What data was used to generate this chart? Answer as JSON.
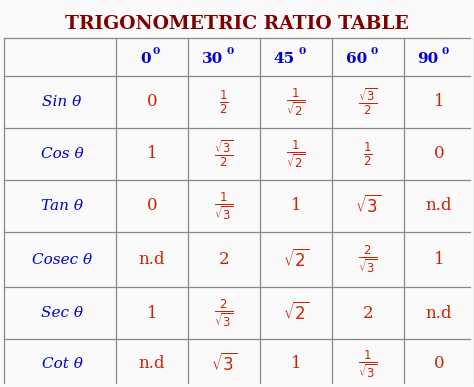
{
  "title": "TRIGONOMETRIC RATIO TABLE",
  "title_color": "#800000",
  "title_fontsize": 13.5,
  "bg_color": "#FAFAFA",
  "grid_color": "#888888",
  "col_header_color": "#0000CC",
  "row_header_color": "#0000CC",
  "cell_value_color": "#CC2200",
  "col_headers": [
    "0",
    "30",
    "45",
    "60",
    "90"
  ],
  "row_headers": [
    "Sin θ",
    "Cos θ",
    "Tan θ",
    "Cosec θ",
    "Sec θ",
    "Cot θ"
  ],
  "figsize": [
    4.74,
    3.87
  ],
  "dpi": 100
}
